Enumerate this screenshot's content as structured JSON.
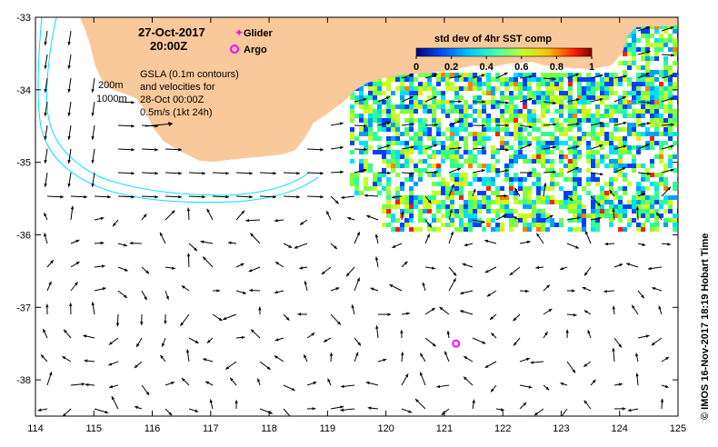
{
  "header": {
    "date": "27-Oct-2017",
    "time": "20:00Z"
  },
  "legend": {
    "glider_label": "Glider",
    "argo_label": "Argo"
  },
  "annotation": {
    "line1": "GSLA (0.1m contours)",
    "line2": "and velocities for",
    "line3": "28-Oct 00:00Z",
    "line4": "0.5m/s (1kt 24h)",
    "isobath_1": "200m",
    "isobath_2": "1000m"
  },
  "colorbar": {
    "title": "std dev of 4hr SST comp",
    "ticks": [
      "0",
      "0.2",
      "0.4",
      "0.6",
      "0.8",
      "1"
    ],
    "range": [
      0,
      1
    ]
  },
  "axes": {
    "x_ticks": [
      "114",
      "115",
      "116",
      "117",
      "118",
      "119",
      "120",
      "121",
      "122",
      "123",
      "124",
      "125"
    ],
    "y_ticks": [
      "-33",
      "-34",
      "-35",
      "-36",
      "-37",
      "-38"
    ],
    "lon_range": [
      114,
      125
    ],
    "lat_range": [
      -38.5,
      -33
    ]
  },
  "argo_float": {
    "lon": 121.2,
    "lat": -37.5
  },
  "credit": "© IMOS 16-Nov-2017 18:19 Hobart Time",
  "colors": {
    "land": "#f9c89b",
    "isobath": "#00e0ff",
    "argo": "#ff00ff",
    "glider": "#ff00ff",
    "arrow": "#000000"
  }
}
